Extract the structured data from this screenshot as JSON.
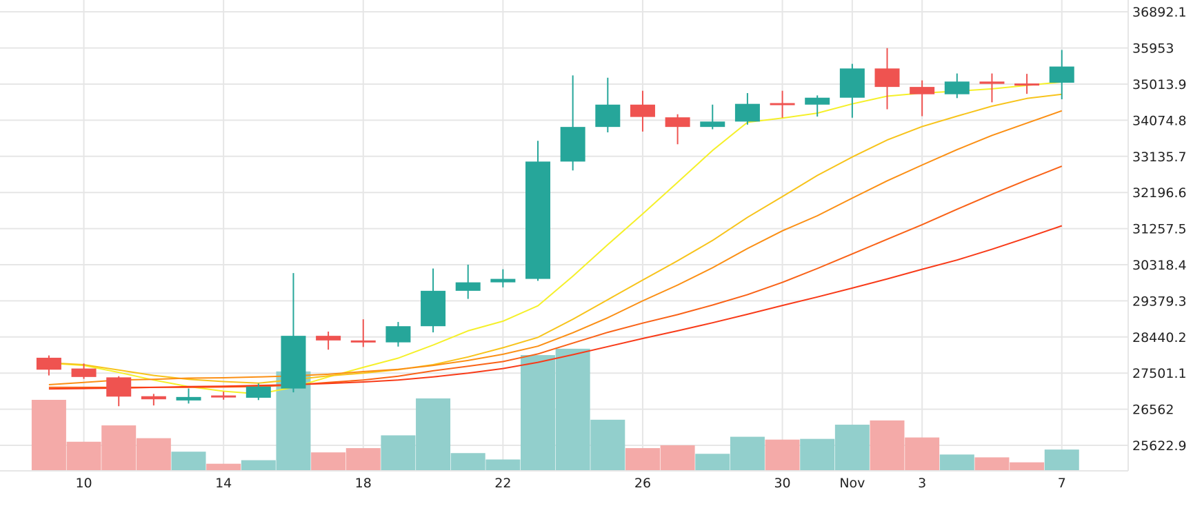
{
  "chart_data": {
    "type": "candlestick",
    "y_ticks": [
      "36892.1",
      "35953",
      "35013.9",
      "34074.8",
      "33135.7",
      "32196.6",
      "31257.5",
      "30318.4",
      "29379.3",
      "28440.2",
      "27501.1",
      "26562",
      "25622.9"
    ],
    "x_ticks": [
      {
        "label": "10",
        "day": 10
      },
      {
        "label": "14",
        "day": 14
      },
      {
        "label": "18",
        "day": 18
      },
      {
        "label": "22",
        "day": 22
      },
      {
        "label": "26",
        "day": 26
      },
      {
        "label": "30",
        "day": 30
      },
      {
        "label": "Nov",
        "day": 32
      },
      {
        "label": "3",
        "day": 34
      },
      {
        "label": "7",
        "day": 38
      }
    ],
    "ylim": [
      24960,
      37200
    ],
    "x_domain": [
      7.6,
      39.9
    ],
    "grid": true,
    "colors": {
      "up": "#26a69a",
      "down": "#ef5350",
      "volume_up": "#92cfcc",
      "volume_down": "#f4aaa8",
      "grid": "#e6e6e6",
      "ma": [
        "#f5f029",
        "#f7c31a",
        "#fb8f14",
        "#f96217",
        "#f83a18"
      ]
    },
    "candles": [
      {
        "day": 9,
        "open": 27900,
        "high": 27960,
        "low": 27440,
        "close": 27590
      },
      {
        "day": 10,
        "open": 27620,
        "high": 27750,
        "low": 27350,
        "close": 27400
      },
      {
        "day": 11,
        "open": 27390,
        "high": 27420,
        "low": 26640,
        "close": 26890
      },
      {
        "day": 12,
        "open": 26900,
        "high": 26960,
        "low": 26660,
        "close": 26820
      },
      {
        "day": 13,
        "open": 26790,
        "high": 27100,
        "low": 26710,
        "close": 26880
      },
      {
        "day": 14,
        "open": 26920,
        "high": 27020,
        "low": 26810,
        "close": 26900
      },
      {
        "day": 15,
        "open": 26860,
        "high": 27230,
        "low": 26800,
        "close": 27150
      },
      {
        "day": 16,
        "open": 27100,
        "high": 30100,
        "low": 27000,
        "close": 28470
      },
      {
        "day": 17,
        "open": 28470,
        "high": 28580,
        "low": 28110,
        "close": 28350
      },
      {
        "day": 18,
        "open": 28350,
        "high": 28900,
        "low": 28180,
        "close": 28300
      },
      {
        "day": 19,
        "open": 28300,
        "high": 28830,
        "low": 28190,
        "close": 28720
      },
      {
        "day": 20,
        "open": 28720,
        "high": 30220,
        "low": 28560,
        "close": 29640
      },
      {
        "day": 21,
        "open": 29640,
        "high": 30320,
        "low": 29430,
        "close": 29860
      },
      {
        "day": 22,
        "open": 29860,
        "high": 30200,
        "low": 29730,
        "close": 29950
      },
      {
        "day": 23,
        "open": 29950,
        "high": 33540,
        "low": 29900,
        "close": 33000
      },
      {
        "day": 24,
        "open": 33000,
        "high": 35240,
        "low": 32770,
        "close": 33900
      },
      {
        "day": 25,
        "open": 33900,
        "high": 35180,
        "low": 33760,
        "close": 34480
      },
      {
        "day": 26,
        "open": 34480,
        "high": 34840,
        "low": 33780,
        "close": 34160
      },
      {
        "day": 27,
        "open": 34150,
        "high": 34230,
        "low": 33450,
        "close": 33900
      },
      {
        "day": 28,
        "open": 33900,
        "high": 34480,
        "low": 33840,
        "close": 34040
      },
      {
        "day": 29,
        "open": 34040,
        "high": 34780,
        "low": 33960,
        "close": 34500
      },
      {
        "day": 30,
        "open": 34520,
        "high": 34840,
        "low": 34140,
        "close": 34480
      },
      {
        "day": 31,
        "open": 34480,
        "high": 34720,
        "low": 34170,
        "close": 34660
      },
      {
        "day": 32,
        "open": 34660,
        "high": 35540,
        "low": 34140,
        "close": 35420
      },
      {
        "day": 33,
        "open": 35420,
        "high": 35950,
        "low": 34360,
        "close": 34940
      },
      {
        "day": 34,
        "open": 34940,
        "high": 35110,
        "low": 34180,
        "close": 34750
      },
      {
        "day": 35,
        "open": 34750,
        "high": 35290,
        "low": 34650,
        "close": 35080
      },
      {
        "day": 36,
        "open": 35080,
        "high": 35290,
        "low": 34540,
        "close": 35020
      },
      {
        "day": 37,
        "open": 35030,
        "high": 35280,
        "low": 34760,
        "close": 35010
      },
      {
        "day": 38,
        "open": 35050,
        "high": 35900,
        "low": 34620,
        "close": 35470
      }
    ],
    "volume": {
      "max": 100,
      "values": [
        {
          "day": 9,
          "value": 100,
          "dir": "down"
        },
        {
          "day": 10,
          "value": 41,
          "dir": "down"
        },
        {
          "day": 11,
          "value": 64,
          "dir": "down"
        },
        {
          "day": 12,
          "value": 46,
          "dir": "down"
        },
        {
          "day": 13,
          "value": 27,
          "dir": "up"
        },
        {
          "day": 14,
          "value": 10,
          "dir": "down"
        },
        {
          "day": 15,
          "value": 15,
          "dir": "up"
        },
        {
          "day": 16,
          "value": 140,
          "dir": "up"
        },
        {
          "day": 17,
          "value": 26,
          "dir": "down"
        },
        {
          "day": 18,
          "value": 32,
          "dir": "down"
        },
        {
          "day": 19,
          "value": 50,
          "dir": "up"
        },
        {
          "day": 20,
          "value": 102,
          "dir": "up"
        },
        {
          "day": 21,
          "value": 25,
          "dir": "up"
        },
        {
          "day": 22,
          "value": 16,
          "dir": "up"
        },
        {
          "day": 23,
          "value": 163,
          "dir": "up"
        },
        {
          "day": 24,
          "value": 172,
          "dir": "up"
        },
        {
          "day": 25,
          "value": 72,
          "dir": "up"
        },
        {
          "day": 26,
          "value": 32,
          "dir": "down"
        },
        {
          "day": 27,
          "value": 36,
          "dir": "down"
        },
        {
          "day": 28,
          "value": 24,
          "dir": "up"
        },
        {
          "day": 29,
          "value": 48,
          "dir": "up"
        },
        {
          "day": 30,
          "value": 44,
          "dir": "down"
        },
        {
          "day": 31,
          "value": 45,
          "dir": "up"
        },
        {
          "day": 32,
          "value": 65,
          "dir": "up"
        },
        {
          "day": 33,
          "value": 71,
          "dir": "down"
        },
        {
          "day": 34,
          "value": 47,
          "dir": "down"
        },
        {
          "day": 35,
          "value": 23,
          "dir": "up"
        },
        {
          "day": 36,
          "value": 19,
          "dir": "down"
        },
        {
          "day": 37,
          "value": 12,
          "dir": "down"
        },
        {
          "day": 38,
          "value": 30,
          "dir": "up"
        }
      ]
    },
    "moving_averages": [
      {
        "start": 9,
        "values": [
          27760,
          27700,
          27520,
          27320,
          27150,
          27030,
          26960,
          27130,
          27400,
          27650,
          27890,
          28230,
          28600,
          28850,
          29250,
          30020,
          30840,
          31640,
          32460,
          33290,
          34020,
          34130,
          34260,
          34500,
          34700,
          34780,
          34830,
          34890,
          34980,
          35070
        ]
      },
      {
        "start": 9,
        "values": [
          27770,
          27720,
          27580,
          27440,
          27340,
          27280,
          27240,
          27330,
          27430,
          27500,
          27590,
          27720,
          27920,
          28160,
          28430,
          28900,
          29410,
          29920,
          30420,
          30950,
          31550,
          32090,
          32640,
          33120,
          33560,
          33910,
          34180,
          34440,
          34640,
          34750
        ]
      },
      {
        "start": 9,
        "values": [
          27200,
          27260,
          27320,
          27340,
          27370,
          27380,
          27400,
          27430,
          27470,
          27540,
          27600,
          27700,
          27830,
          27990,
          28200,
          28550,
          28940,
          29380,
          29790,
          30240,
          30740,
          31200,
          31590,
          32050,
          32500,
          32910,
          33310,
          33680,
          34000,
          34320
        ]
      },
      {
        "start": 9,
        "values": [
          27130,
          27130,
          27130,
          27130,
          27130,
          27140,
          27150,
          27190,
          27260,
          27320,
          27420,
          27560,
          27680,
          27800,
          28000,
          28280,
          28560,
          28800,
          29020,
          29270,
          29540,
          29860,
          30220,
          30600,
          30980,
          31360,
          31760,
          32150,
          32520,
          32880
        ]
      },
      {
        "start": 9,
        "values": [
          27090,
          27100,
          27110,
          27130,
          27150,
          27160,
          27180,
          27200,
          27230,
          27270,
          27320,
          27400,
          27500,
          27620,
          27780,
          27980,
          28190,
          28400,
          28600,
          28810,
          29030,
          29260,
          29480,
          29710,
          29950,
          30200,
          30440,
          30720,
          31020,
          31330
        ]
      }
    ]
  }
}
